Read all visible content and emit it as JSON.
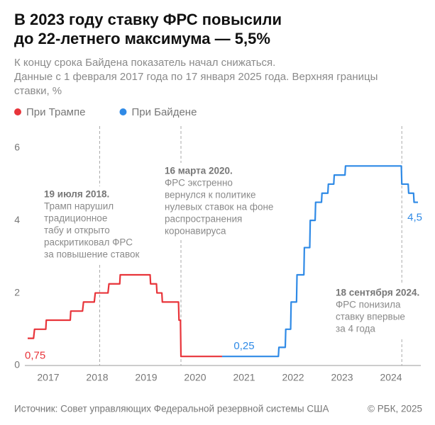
{
  "chart_data": {
    "type": "line",
    "title": [
      "В 2023 году ставку ФРС повысили",
      "до 22-летнего максимума — 5,5%"
    ],
    "subtitle": [
      "К концу срока Байдена показатель начал снижаться.",
      "Данные с 1 февраля 2017 года по 17 января 2025 года. Верхняя границы",
      "ставки, %"
    ],
    "source": "Источник: Совет управляющих Федеральной резервной системы США",
    "copyright": "© РБК, 2025",
    "x": [
      2017.08,
      2017.2,
      2017.22,
      2017.45,
      2017.46,
      2017.95,
      2017.96,
      2018.2,
      2018.22,
      2018.44,
      2018.46,
      2018.72,
      2018.74,
      2018.96,
      2018.97,
      2019.58,
      2019.59,
      2019.71,
      2019.72,
      2019.82,
      2019.83,
      2020.16,
      2020.17,
      2020.2,
      2020.21,
      2021.05,
      2022.2,
      2022.21,
      2022.34,
      2022.35,
      2022.45,
      2022.46,
      2022.57,
      2022.58,
      2022.72,
      2022.73,
      2022.84,
      2022.85,
      2022.95,
      2022.96,
      2023.08,
      2023.09,
      2023.21,
      2023.22,
      2023.33,
      2023.34,
      2023.56,
      2023.57,
      2024.71,
      2024.72,
      2024.85,
      2024.86,
      2024.96,
      2024.97,
      2025.05
    ],
    "series": [
      {
        "name": "При Трампе",
        "color": "#e8343a",
        "values": [
          0.75,
          0.75,
          1,
          1,
          1.25,
          1.25,
          1.5,
          1.5,
          1.75,
          1.75,
          2,
          2,
          2.25,
          2.25,
          2.5,
          2.5,
          2.25,
          2.25,
          2,
          2,
          1.75,
          1.75,
          1.25,
          1.25,
          0.25,
          0.25,
          null,
          null,
          null,
          null,
          null,
          null,
          null,
          null,
          null,
          null,
          null,
          null,
          null,
          null,
          null,
          null,
          null,
          null,
          null,
          null,
          null,
          null,
          null,
          null,
          null,
          null,
          null,
          null,
          null
        ],
        "value_labels": [
          "0,75",
          null,
          null,
          null,
          null,
          null,
          null,
          null,
          null,
          null,
          null,
          null,
          null,
          null,
          null,
          null,
          null,
          null,
          null,
          null,
          null,
          null,
          null,
          null,
          null,
          null,
          null,
          null,
          null,
          null,
          null,
          null,
          null,
          null,
          null,
          null,
          null,
          null,
          null,
          null,
          null,
          null,
          null,
          null,
          null,
          null,
          null,
          null,
          null,
          null,
          null,
          null,
          null,
          null,
          null
        ]
      },
      {
        "name": "При Байдене",
        "color": "#2f8ae6",
        "values": [
          null,
          null,
          null,
          null,
          null,
          null,
          null,
          null,
          null,
          null,
          null,
          null,
          null,
          null,
          null,
          null,
          null,
          null,
          null,
          null,
          null,
          null,
          null,
          null,
          null,
          0.25,
          0.25,
          0.5,
          0.5,
          1,
          1,
          1.75,
          1.75,
          2.5,
          2.5,
          3.25,
          3.25,
          4,
          4,
          4.5,
          4.5,
          4.75,
          4.75,
          5,
          5,
          5.25,
          5.25,
          5.5,
          5.5,
          5,
          5,
          4.75,
          4.75,
          4.5,
          4.5
        ],
        "value_labels": [
          null,
          null,
          null,
          null,
          null,
          null,
          null,
          null,
          null,
          null,
          null,
          null,
          null,
          null,
          null,
          null,
          null,
          null,
          null,
          null,
          null,
          null,
          null,
          null,
          null,
          "0,25",
          null,
          null,
          null,
          null,
          null,
          null,
          null,
          null,
          null,
          null,
          null,
          null,
          null,
          null,
          null,
          null,
          null,
          null,
          null,
          null,
          null,
          null,
          null,
          null,
          null,
          null,
          null,
          null,
          "4,5"
        ]
      }
    ],
    "xlim": [
      2017.08,
      2025.05
    ],
    "xticks": [
      {
        "value": 2017.5,
        "label": "2017"
      },
      {
        "value": 2018.5,
        "label": "2018"
      },
      {
        "value": 2019.5,
        "label": "2019"
      },
      {
        "value": 2020.5,
        "label": "2020"
      },
      {
        "value": 2021.5,
        "label": "2021"
      },
      {
        "value": 2022.5,
        "label": "2022"
      },
      {
        "value": 2023.5,
        "label": "2023"
      },
      {
        "value": 2024.5,
        "label": "2024"
      }
    ],
    "ylim": [
      0,
      6.6
    ],
    "yticks": [
      0,
      2,
      4,
      6
    ],
    "grid": false,
    "annotations": [
      {
        "x": 2018.55,
        "title": "19 июля 2018.",
        "lines": [
          "Трамп нарушил",
          "традиционное",
          "табу и открыто",
          "раскритиковал ФРС",
          "за повышение ставок"
        ]
      },
      {
        "x": 2020.21,
        "title": "16 марта 2020.",
        "lines": [
          "ФРС экстренно",
          "вернулся к политике",
          "нулевых ставок на фоне",
          "распространения",
          "коронавируса"
        ]
      },
      {
        "x": 2024.72,
        "title": "18 сентября 2024.",
        "lines": [
          "ФРС понизила",
          "ставку впервые",
          "за 4 года"
        ]
      }
    ]
  }
}
